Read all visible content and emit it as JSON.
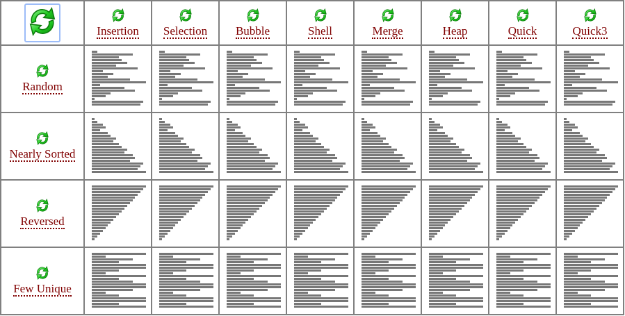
{
  "icons": {
    "play_all": "refresh-icon",
    "play": "refresh-icon",
    "icon_color": "#22cc22"
  },
  "colors": {
    "label": "#800000",
    "bar": "#777777",
    "grid": "#808080",
    "highlight_border": "#9cbcf8"
  },
  "algorithms": [
    "Insertion",
    "Selection",
    "Bubble",
    "Shell",
    "Merge",
    "Heap",
    "Quick",
    "Quick3"
  ],
  "conditions": [
    {
      "label": "Random",
      "values": [
        2,
        15,
        10,
        11,
        13,
        9,
        17,
        4,
        8,
        6,
        14,
        20,
        3,
        12,
        16,
        7,
        5,
        1,
        19,
        18
      ]
    },
    {
      "label": "Nearly Sorted",
      "values": [
        1,
        2,
        4,
        5,
        3,
        6,
        7,
        9,
        8,
        10,
        11,
        13,
        12,
        15,
        16,
        14,
        19,
        18,
        17,
        20
      ]
    },
    {
      "label": "Reversed",
      "values": [
        20,
        19,
        18,
        17,
        16,
        15,
        14,
        13,
        12,
        11,
        10,
        9,
        8,
        7,
        6,
        5,
        4,
        3,
        2,
        1
      ]
    },
    {
      "label": "Few Unique",
      "values": [
        20,
        5,
        15,
        10,
        20,
        20,
        10,
        5,
        20,
        10,
        15,
        20,
        20,
        15,
        5,
        10,
        20,
        20,
        10,
        20
      ]
    }
  ]
}
